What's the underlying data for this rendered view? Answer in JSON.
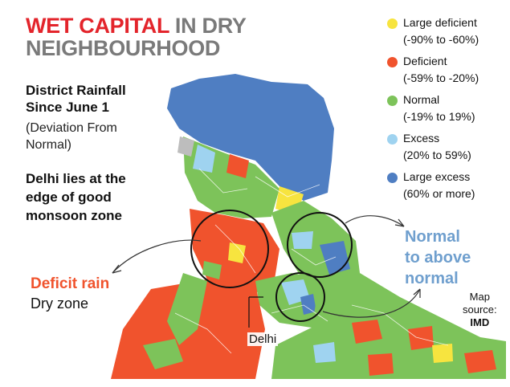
{
  "headline": {
    "line1_part1": "WET CAPITAL",
    "line1_part2": "IN DRY",
    "line2": "NEIGHBOURHOOD"
  },
  "subtitle": {
    "line1": "District Rainfall",
    "line2": "Since June 1"
  },
  "deviation_note": "(Deviation From Normal)",
  "key_note": "Delhi lies at the edge of good monsoon zone",
  "legend": [
    {
      "label": "Large deficient",
      "range": "(-90% to -60%)",
      "color": "#f7e43f"
    },
    {
      "label": "Deficient",
      "range": "(-59% to -20%)",
      "color": "#f0532d"
    },
    {
      "label": "Normal",
      "range": "(-19% to 19%)",
      "color": "#7dc35a"
    },
    {
      "label": "Excess",
      "range": "(20% to 59%)",
      "color": "#9fd3f0"
    },
    {
      "label": "Large excess",
      "range": "(60% or more)",
      "color": "#4f7ec2"
    }
  ],
  "callouts": {
    "deficit_title": "Deficit rain",
    "deficit_sub": "Dry zone",
    "normal_line1": "Normal",
    "normal_line2": "to above",
    "normal_line3": "normal"
  },
  "city_label": "Delhi",
  "map_source": {
    "line1": "Map",
    "line2": "source:",
    "line3": "IMD"
  }
}
